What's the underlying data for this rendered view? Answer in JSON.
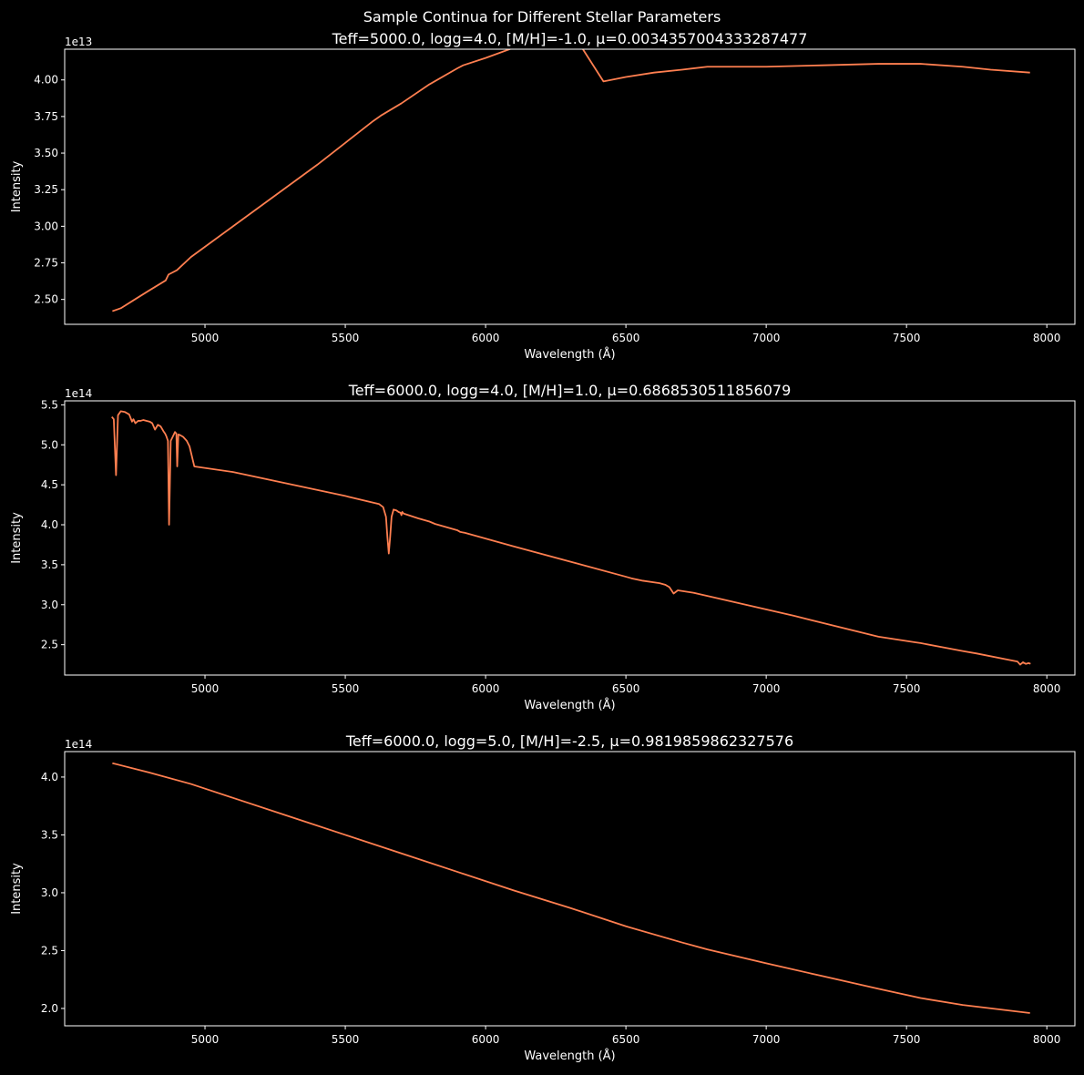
{
  "figure": {
    "suptitle": "Sample Continua for Different Stellar Parameters",
    "background": "#000000",
    "foreground": "#ffffff",
    "line_color": "#ff7f50"
  },
  "chart_data": [
    {
      "type": "line",
      "title": "Teff=5000.0, logg=4.0, [M/H]=-1.0, μ=0.0034357004333287477",
      "xlabel": "Wavelength (Å)",
      "ylabel": "Intensity",
      "offset_label": "1e13",
      "xlim": [
        4500,
        8100
      ],
      "ylim": [
        2.33,
        4.21
      ],
      "xticks": [
        5000,
        5500,
        6000,
        6500,
        7000,
        7500,
        8000
      ],
      "xtick_labels": [
        "5000",
        "5500",
        "6000",
        "6500",
        "7000",
        "7500",
        "8000"
      ],
      "yticks": [
        2.5,
        2.75,
        3.0,
        3.25,
        3.5,
        3.75,
        4.0
      ],
      "ytick_labels": [
        "2.50",
        "2.75",
        "3.00",
        "3.25",
        "3.50",
        "3.75",
        "4.00"
      ],
      "grid": false,
      "series": [
        {
          "x": [
            4670,
            4700,
            4750,
            4800,
            4860,
            4870,
            4900,
            4950,
            5000,
            5100,
            5200,
            5300,
            5400,
            5500,
            5600,
            5630,
            5700,
            5800,
            5900,
            5920,
            6000,
            6100,
            6200,
            6300,
            6420,
            6500,
            6600,
            6700,
            6790,
            7000,
            7200,
            7400,
            7550,
            7700,
            7800,
            7940
          ],
          "y": [
            2.42,
            2.44,
            2.5,
            2.56,
            2.63,
            2.67,
            2.7,
            2.79,
            2.86,
            3.0,
            3.14,
            3.28,
            3.42,
            3.57,
            3.72,
            3.76,
            3.84,
            3.97,
            4.08,
            4.1,
            4.15,
            4.22,
            4.29,
            4.35,
            3.99,
            4.02,
            4.05,
            4.07,
            4.09,
            4.09,
            4.1,
            4.11,
            4.11,
            4.09,
            4.07,
            4.05
          ]
        }
      ]
    },
    {
      "type": "line",
      "title": "Teff=6000.0, logg=4.0, [M/H]=1.0, μ=0.6868530511856079",
      "xlabel": "Wavelength (Å)",
      "ylabel": "Intensity",
      "offset_label": "1e14",
      "xlim": [
        4500,
        8100
      ],
      "ylim": [
        2.12,
        5.55
      ],
      "xticks": [
        5000,
        5500,
        6000,
        6500,
        7000,
        7500,
        8000
      ],
      "xtick_labels": [
        "5000",
        "5500",
        "6000",
        "6500",
        "7000",
        "7500",
        "8000"
      ],
      "yticks": [
        2.5,
        3.0,
        3.5,
        4.0,
        4.5,
        5.0,
        5.5
      ],
      "ytick_labels": [
        "2.5",
        "3.0",
        "3.5",
        "4.0",
        "4.5",
        "5.0",
        "5.5"
      ],
      "grid": false,
      "series": [
        {
          "x": [
            4668,
            4675,
            4683,
            4690,
            4700,
            4715,
            4730,
            4740,
            4745,
            4752,
            4762,
            4770,
            4780,
            4792,
            4803,
            4812,
            4822,
            4832,
            4842,
            4852,
            4858,
            4862,
            4865,
            4868,
            4872,
            4878,
            4885,
            4893,
            4898,
            4901,
            4905,
            4912,
            4922,
            4935,
            4945,
            4962,
            5100,
            5300,
            5500,
            5620,
            5635,
            5645,
            5650,
            5655,
            5660,
            5665,
            5672,
            5682,
            5690,
            5697,
            5700,
            5703,
            5708,
            5760,
            5800,
            5820,
            5860,
            5900,
            5910,
            5925,
            6100,
            6300,
            6500,
            6520,
            6560,
            6620,
            6640,
            6655,
            6670,
            6685,
            6740,
            6765,
            6790,
            7100,
            7400,
            7530,
            7550,
            7700,
            7750,
            7880,
            7895,
            7905,
            7915,
            7925,
            7935,
            7942
          ],
          "y": [
            5.35,
            5.32,
            4.62,
            5.37,
            5.42,
            5.41,
            5.38,
            5.29,
            5.32,
            5.27,
            5.3,
            5.3,
            5.31,
            5.3,
            5.29,
            5.27,
            5.19,
            5.25,
            5.23,
            5.17,
            5.14,
            5.11,
            5.08,
            5.05,
            4.0,
            5.05,
            5.1,
            5.16,
            5.14,
            4.73,
            5.13,
            5.12,
            5.1,
            5.05,
            4.98,
            4.73,
            4.66,
            4.51,
            4.36,
            4.26,
            4.22,
            4.1,
            3.85,
            3.64,
            3.85,
            4.1,
            4.19,
            4.18,
            4.16,
            4.15,
            4.12,
            4.16,
            4.14,
            4.08,
            4.04,
            4.01,
            3.97,
            3.93,
            3.91,
            3.9,
            3.73,
            3.54,
            3.35,
            3.33,
            3.3,
            3.27,
            3.25,
            3.22,
            3.14,
            3.18,
            3.15,
            3.13,
            3.11,
            2.86,
            2.6,
            2.53,
            2.52,
            2.42,
            2.39,
            2.3,
            2.29,
            2.25,
            2.28,
            2.26,
            2.27,
            2.26
          ]
        }
      ]
    },
    {
      "type": "line",
      "title": "Teff=6000.0, logg=5.0, [M/H]=-2.5, μ=0.9819859862327576",
      "xlabel": "Wavelength (Å)",
      "ylabel": "Intensity",
      "offset_label": "1e14",
      "xlim": [
        4500,
        8100
      ],
      "ylim": [
        1.85,
        4.22
      ],
      "xticks": [
        5000,
        5500,
        6000,
        6500,
        7000,
        7500,
        8000
      ],
      "xtick_labels": [
        "5000",
        "5500",
        "6000",
        "6500",
        "7000",
        "7500",
        "8000"
      ],
      "yticks": [
        2.0,
        2.5,
        3.0,
        3.5,
        4.0
      ],
      "ytick_labels": [
        "2.0",
        "2.5",
        "3.0",
        "3.5",
        "4.0"
      ],
      "grid": false,
      "series": [
        {
          "x": [
            4670,
            4800,
            4950,
            5100,
            5300,
            5500,
            5700,
            5900,
            6100,
            6300,
            6500,
            6700,
            6790,
            7000,
            7200,
            7400,
            7550,
            7700,
            7940
          ],
          "y": [
            4.12,
            4.04,
            3.94,
            3.82,
            3.66,
            3.5,
            3.34,
            3.18,
            3.02,
            2.87,
            2.71,
            2.57,
            2.51,
            2.39,
            2.28,
            2.17,
            2.09,
            2.03,
            1.96
          ]
        }
      ]
    }
  ]
}
